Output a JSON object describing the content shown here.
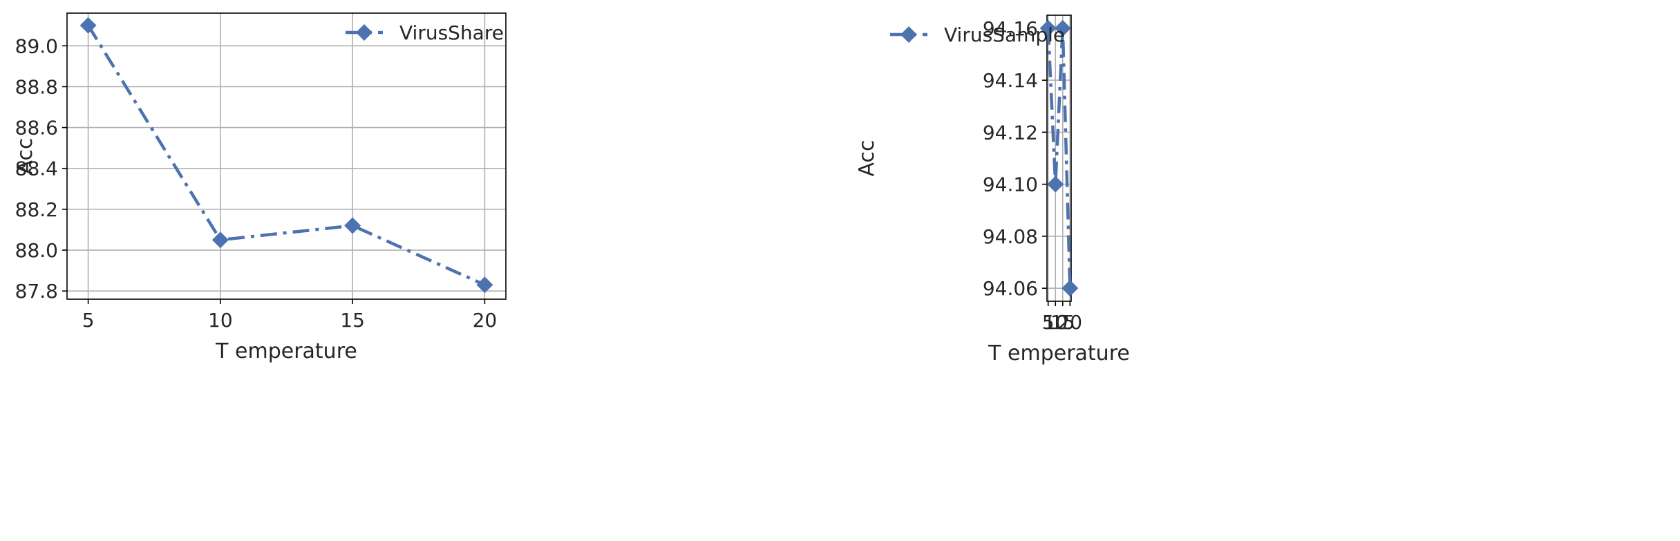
{
  "chart_data": [
    {
      "type": "line",
      "xlabel": "T emperature",
      "ylabel": "Acc",
      "x": [
        5,
        10,
        15,
        20
      ],
      "xticks": [
        "5",
        "10",
        "15",
        "20"
      ],
      "yticks": [
        "87.8",
        "88.0",
        "88.2",
        "88.4",
        "88.6",
        "88.8",
        "89.0"
      ],
      "xlim": [
        4.2,
        20.8
      ],
      "ylim": [
        87.76,
        89.16
      ],
      "grid": true,
      "legend_position": "top-right",
      "series": [
        {
          "name": "VirusShare",
          "values": [
            89.1,
            88.05,
            88.12,
            87.83
          ],
          "color": "#4c72b0",
          "linestyle": "dash-dot",
          "marker": "diamond"
        }
      ]
    },
    {
      "type": "line",
      "xlabel": "T emperature",
      "ylabel": "Acc",
      "x": [
        5,
        10,
        15,
        20
      ],
      "xticks": [
        "5",
        "10",
        "15",
        "20"
      ],
      "yticks": [
        "94.06",
        "94.08",
        "94.10",
        "94.12",
        "94.14",
        "94.16"
      ],
      "xlim": [
        4.2,
        20.8
      ],
      "ylim": [
        94.055,
        94.165
      ],
      "grid": true,
      "legend_position": "top-right",
      "series": [
        {
          "name": "VirusSample",
          "values": [
            94.16,
            94.1,
            94.16,
            94.06
          ],
          "color": "#4c72b0",
          "linestyle": "dash-dot",
          "marker": "diamond"
        }
      ]
    }
  ]
}
